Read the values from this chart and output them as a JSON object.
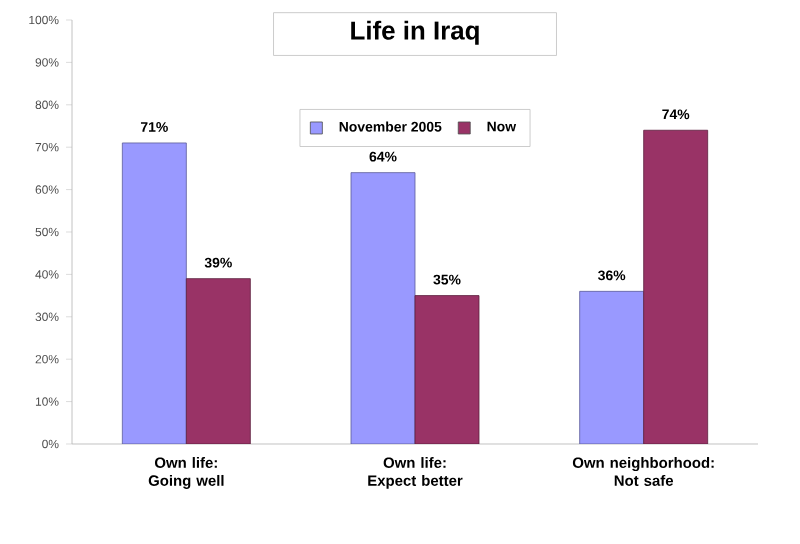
{
  "chart_data": {
    "type": "bar",
    "title": "Life in Iraq",
    "categories": [
      "Own life:\nGoing well",
      "Own life:\nExpect better",
      "Own neighborhood:\nNot safe"
    ],
    "series": [
      {
        "name": "November 2005",
        "color": "#9999ff",
        "values": [
          71,
          64,
          36
        ],
        "value_labels": [
          "71%",
          "64%",
          "36%"
        ]
      },
      {
        "name": "Now",
        "color": "#993366",
        "values": [
          39,
          35,
          74
        ],
        "value_labels": [
          "39%",
          "35%",
          "74%"
        ]
      }
    ],
    "ylim": [
      0,
      100
    ],
    "yticks": [
      {
        "value": 0,
        "label": "0%"
      },
      {
        "value": 10,
        "label": "10%"
      },
      {
        "value": 20,
        "label": "20%"
      },
      {
        "value": 30,
        "label": "30%"
      },
      {
        "value": 40,
        "label": "40%"
      },
      {
        "value": 50,
        "label": "50%"
      },
      {
        "value": 60,
        "label": "60%"
      },
      {
        "value": 70,
        "label": "70%"
      },
      {
        "value": 80,
        "label": "80%"
      },
      {
        "value": 90,
        "label": "90%"
      },
      {
        "value": 100,
        "label": "100%"
      }
    ],
    "grid": false,
    "legend": "top"
  }
}
